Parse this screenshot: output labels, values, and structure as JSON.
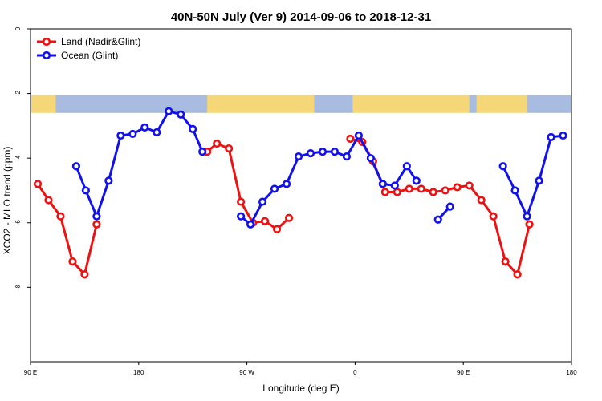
{
  "chart_data": {
    "type": "line",
    "title": "40N-50N July (Ver 9)   2014-09-06 to 2018-12-31",
    "xlabel": "Longitude (deg E)",
    "ylabel": "XCO2 - MLO trend (ppm)",
    "xlim": [
      90,
      540
    ],
    "ylim": [
      -10.3,
      0
    ],
    "x_ticks": [
      {
        "value": 90,
        "label": "90 E"
      },
      {
        "value": 180,
        "label": "180"
      },
      {
        "value": 270,
        "label": "90 W"
      },
      {
        "value": 360,
        "label": "0"
      },
      {
        "value": 450,
        "label": "90 E"
      },
      {
        "value": 540,
        "label": "180"
      }
    ],
    "y_ticks": [
      {
        "value": 0,
        "label": "0"
      },
      {
        "value": -2,
        "label": "-2"
      },
      {
        "value": -4,
        "label": "-4"
      },
      {
        "value": -6,
        "label": "-6"
      },
      {
        "value": -8,
        "label": "-8"
      }
    ],
    "legend_position": "top-left",
    "background_band": {
      "y_top": -2.05,
      "y_bottom": -2.6,
      "land_color": "#F5D778",
      "ocean_color": "#A7BCE0"
    },
    "series": [
      {
        "name": "Land (Nadir&Glint)",
        "color": "#EE1111",
        "segments": [
          [
            [
              96,
              -4.8
            ],
            [
              105,
              -5.3
            ],
            [
              115,
              -5.8
            ],
            [
              125,
              -7.2
            ],
            [
              135,
              -7.6
            ],
            [
              145,
              -6.05
            ]
          ],
          [
            [
              237,
              -3.8
            ],
            [
              245,
              -3.55
            ],
            [
              255,
              -3.7
            ],
            [
              265,
              -5.35
            ],
            [
              275,
              -6.0
            ],
            [
              285,
              -5.95
            ],
            [
              295,
              -6.2
            ],
            [
              305,
              -5.85
            ]
          ],
          [
            [
              356,
              -3.4
            ],
            [
              366,
              -3.5
            ],
            [
              375,
              -4.1
            ],
            [
              385,
              -5.05
            ],
            [
              395,
              -5.05
            ],
            [
              405,
              -4.95
            ],
            [
              415,
              -4.95
            ],
            [
              425,
              -5.05
            ],
            [
              435,
              -5.0
            ],
            [
              445,
              -4.9
            ],
            [
              455,
              -4.85
            ],
            [
              465,
              -5.3
            ],
            [
              475,
              -5.8
            ],
            [
              485,
              -7.2
            ],
            [
              495,
              -7.6
            ],
            [
              505,
              -6.05
            ]
          ]
        ]
      },
      {
        "name": "Ocean (Glint)",
        "color": "#1111EE",
        "segments": [
          [
            [
              128,
              -4.25
            ],
            [
              136,
              -5.0
            ],
            [
              145,
              -5.8
            ],
            [
              155,
              -4.7
            ],
            [
              165,
              -3.3
            ],
            [
              175,
              -3.25
            ],
            [
              185,
              -3.05
            ],
            [
              195,
              -3.2
            ],
            [
              205,
              -2.55
            ],
            [
              215,
              -2.65
            ],
            [
              225,
              -3.1
            ],
            [
              233,
              -3.8
            ]
          ],
          [
            [
              265,
              -5.8
            ],
            [
              273,
              -6.05
            ],
            [
              283,
              -5.35
            ],
            [
              293,
              -4.95
            ],
            [
              303,
              -4.8
            ],
            [
              313,
              -3.95
            ],
            [
              323,
              -3.85
            ],
            [
              333,
              -3.8
            ],
            [
              343,
              -3.8
            ],
            [
              353,
              -3.95
            ],
            [
              363,
              -3.3
            ],
            [
              373,
              -4.0
            ],
            [
              383,
              -4.8
            ],
            [
              393,
              -4.85
            ],
            [
              403,
              -4.25
            ],
            [
              411,
              -4.7
            ]
          ],
          [
            [
              429,
              -5.9
            ],
            [
              439,
              -5.5
            ]
          ],
          [
            [
              483,
              -4.25
            ],
            [
              493,
              -5.0
            ],
            [
              503,
              -5.8
            ],
            [
              513,
              -4.7
            ],
            [
              523,
              -3.35
            ],
            [
              533,
              -3.3
            ]
          ]
        ]
      }
    ]
  }
}
